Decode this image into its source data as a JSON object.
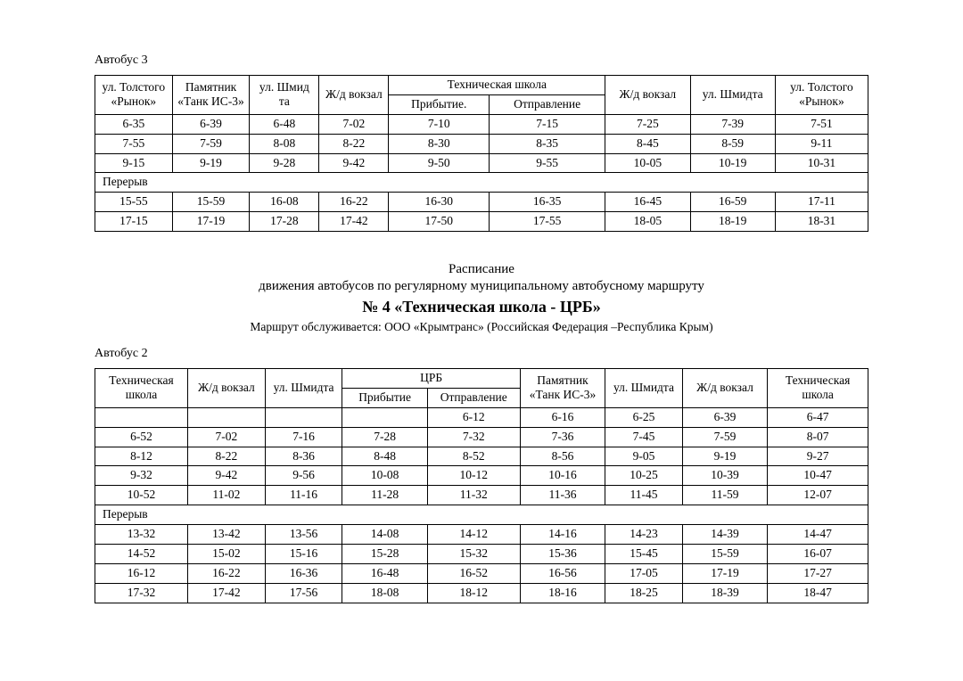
{
  "colors": {
    "page_bg": "#ffffff",
    "text": "#000000",
    "border": "#000000"
  },
  "typography": {
    "body_family": "Times New Roman",
    "body_size_pt": 11,
    "heading_bold_size_pt": 14
  },
  "bus3": {
    "label": "Автобус 3",
    "header": {
      "c0": "ул. Толстого «Рынок»",
      "c1": "Памятник «Танк ИС-3»",
      "c2": "ул. Шмид та",
      "c3": "Ж/д вокзал",
      "c4_group": "Техническая школа",
      "c4a": "Прибытие.",
      "c4b": "Отправление",
      "c5": "Ж/д вокзал",
      "c6": "ул. Шмидта",
      "c7": "ул. Толстого «Рынок»"
    },
    "rows_top": [
      [
        "6-35",
        "6-39",
        "6-48",
        "7-02",
        "7-10",
        "7-15",
        "7-25",
        "7-39",
        "7-51"
      ],
      [
        "7-55",
        "7-59",
        "8-08",
        "8-22",
        "8-30",
        "8-35",
        "8-45",
        "8-59",
        "9-11"
      ],
      [
        "9-15",
        "9-19",
        "9-28",
        "9-42",
        "9-50",
        "9-55",
        "10-05",
        "10-19",
        "10-31"
      ]
    ],
    "break_label": "Перерыв",
    "rows_bottom": [
      [
        "15-55",
        "15-59",
        "16-08",
        "16-22",
        "16-30",
        "16-35",
        "16-45",
        "16-59",
        "17-11"
      ],
      [
        "17-15",
        "17-19",
        "17-28",
        "17-42",
        "17-50",
        "17-55",
        "18-05",
        "18-19",
        "18-31"
      ]
    ]
  },
  "heading": {
    "line1": "Расписание",
    "line2": "движения автобусов по регулярному муниципальному автобусному маршруту",
    "line3": "№ 4 «Техническая школа - ЦРБ»",
    "line4": "Маршрут обслуживается: ООО «Крымтранс» (Российская Федерация –Республика Крым)"
  },
  "bus2": {
    "label": "Автобус 2",
    "header": {
      "c0": "Техническая школа",
      "c1": "Ж/д вокзал",
      "c2": "ул. Шмидта",
      "c3_group": "ЦРБ",
      "c3a": "Прибытие",
      "c3b": "Отправление",
      "c4": "Памятник «Танк ИС-3»",
      "c5": "ул. Шмидта",
      "c6": "Ж/д вокзал",
      "c7": "Техническая школа"
    },
    "rows_top": [
      [
        "",
        "",
        "",
        "",
        "6-12",
        "6-16",
        "6-25",
        "6-39",
        "6-47"
      ],
      [
        "6-52",
        "7-02",
        "7-16",
        "7-28",
        "7-32",
        "7-36",
        "7-45",
        "7-59",
        "8-07"
      ],
      [
        "8-12",
        "8-22",
        "8-36",
        "8-48",
        "8-52",
        "8-56",
        "9-05",
        "9-19",
        "9-27"
      ],
      [
        "9-32",
        "9-42",
        "9-56",
        "10-08",
        "10-12",
        "10-16",
        "10-25",
        "10-39",
        "10-47"
      ],
      [
        "10-52",
        "11-02",
        "11-16",
        "11-28",
        "11-32",
        "11-36",
        "11-45",
        "11-59",
        "12-07"
      ]
    ],
    "break_label": "Перерыв",
    "rows_bottom": [
      [
        "13-32",
        "13-42",
        "13-56",
        "14-08",
        "14-12",
        "14-16",
        "14-23",
        "14-39",
        "14-47"
      ],
      [
        "14-52",
        "15-02",
        "15-16",
        "15-28",
        "15-32",
        "15-36",
        "15-45",
        "15-59",
        "16-07"
      ],
      [
        "16-12",
        "16-22",
        "16-36",
        "16-48",
        "16-52",
        "16-56",
        "17-05",
        "17-19",
        "17-27"
      ],
      [
        "17-32",
        "17-42",
        "17-56",
        "18-08",
        "18-12",
        "18-16",
        "18-25",
        "18-39",
        "18-47"
      ]
    ]
  }
}
